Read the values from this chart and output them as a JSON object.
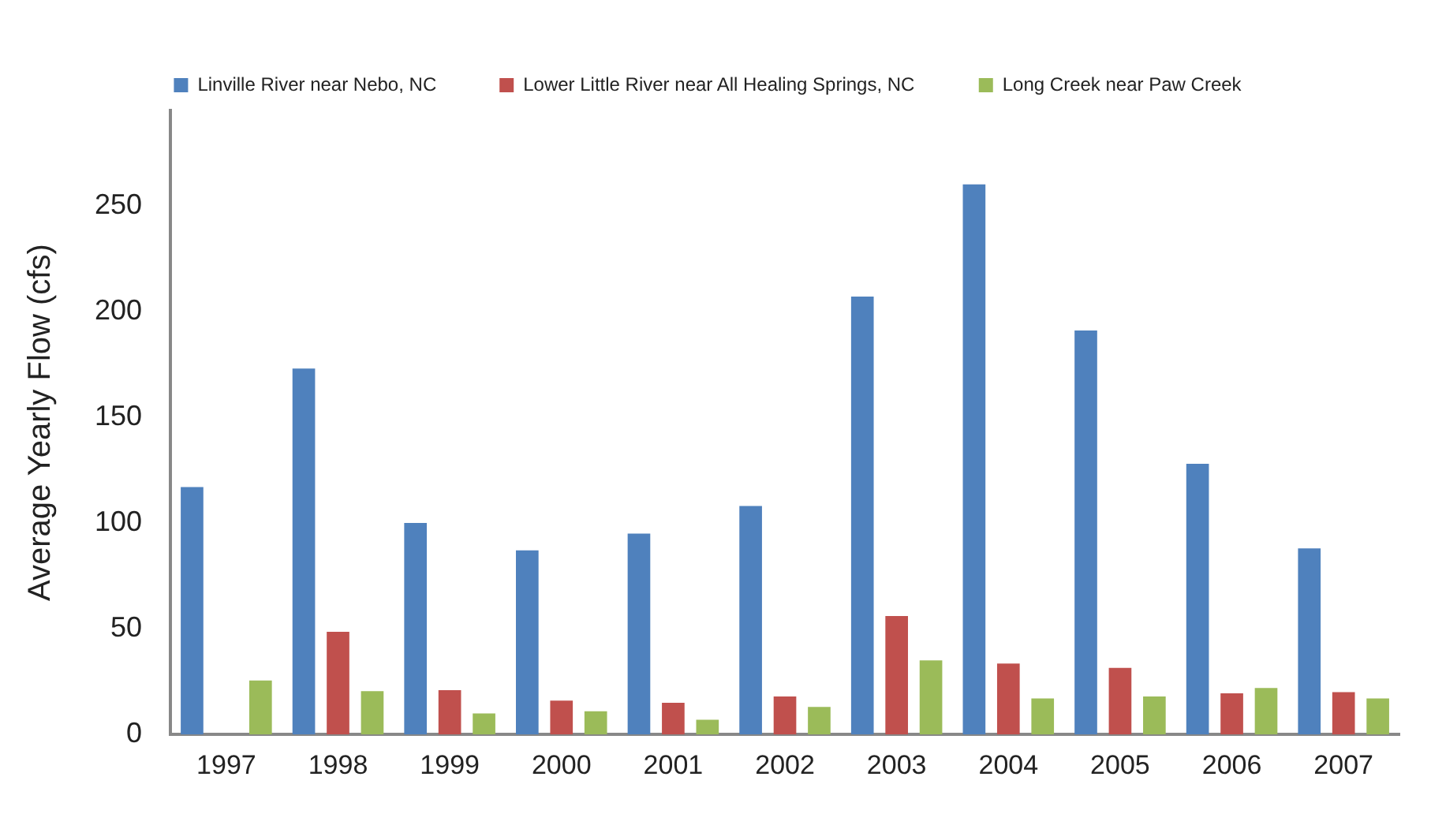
{
  "chart_data": {
    "type": "bar",
    "ylabel": "Average Yearly Flow (cfs)",
    "categories": [
      "1997",
      "1998",
      "1999",
      "2000",
      "2001",
      "2002",
      "2003",
      "2004",
      "2005",
      "2006",
      "2007"
    ],
    "series": [
      {
        "name": "Linville River near Nebo, NC",
        "color": "#4f81bd",
        "values": [
          117,
          173,
          100,
          87,
          95,
          108,
          207,
          260,
          191,
          128,
          88
        ]
      },
      {
        "name": "Lower Little River near All Healing Springs, NC",
        "color": "#c0504d",
        "values": [
          null,
          48.5,
          21,
          16,
          15,
          18,
          56,
          33.5,
          31.5,
          19.5,
          20
        ]
      },
      {
        "name": "Long Creek near Paw Creek",
        "color": "#9bbb59",
        "values": [
          25.5,
          20.5,
          10,
          11,
          7,
          13,
          35,
          17,
          18,
          22,
          17
        ]
      }
    ],
    "ylim": [
      0,
      295
    ],
    "yticks": [
      0,
      50,
      100,
      150,
      200,
      250
    ],
    "grid": false,
    "legend": "top"
  }
}
